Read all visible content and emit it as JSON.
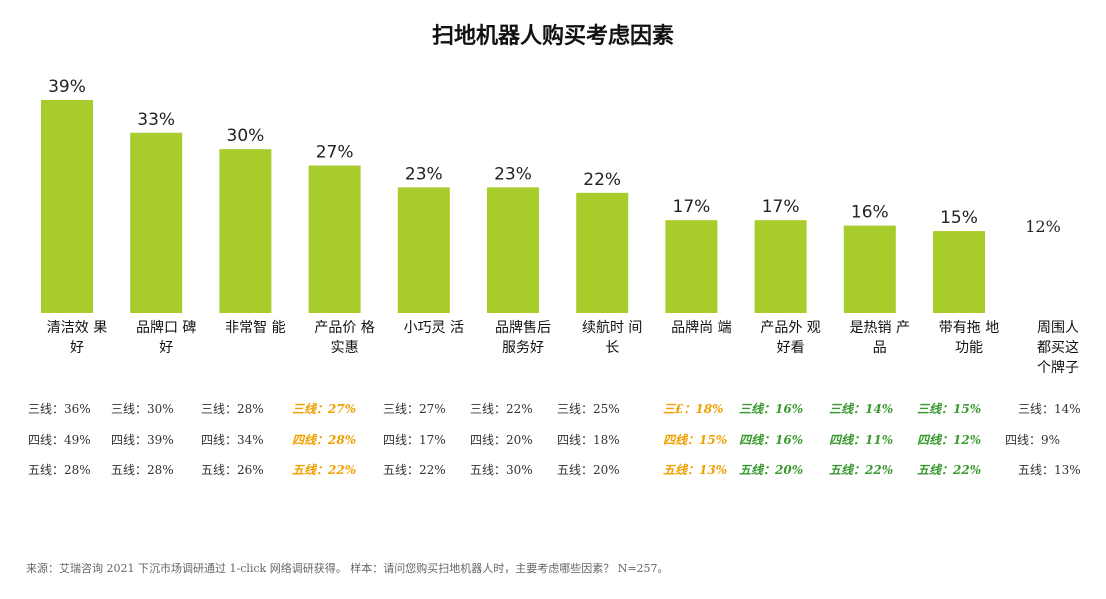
{
  "chart_data": {
    "type": "bar",
    "title": "扫地机器人购买考虑因素",
    "categories": [
      "清洁效 果\n好",
      "品牌口 碑\n好",
      "非常智 能",
      "产品价 格\n实惠",
      "小巧灵 活",
      "品牌售后\n服务好",
      "续航时 间\n长",
      "品牌尚 端",
      "产品外 观\n好看",
      "是热销 产\n品",
      "带有拖 地\n功能",
      "周围人\n都买这\n个牌子"
    ],
    "values": [
      39,
      33,
      30,
      27,
      23,
      23,
      22,
      17,
      17,
      16,
      15,
      12
    ],
    "value_labels": [
      "39%",
      "33%",
      "30%",
      "27%",
      "23%",
      "23%",
      "22%",
      "17%",
      "17%",
      "16%",
      "15%",
      "12%"
    ],
    "ylim": [
      0,
      39
    ],
    "bar_color": "#a8cc2c",
    "tiers": [
      [
        "三线：36%",
        "四线：49%",
        "五线：28%"
      ],
      [
        "三线：30%",
        "四线：39%",
        "五线：28%"
      ],
      [
        "三线：28%",
        "四线：34%",
        "五线：26%"
      ],
      [
        "三线：27%",
        "四线：28%",
        "五线：22%"
      ],
      [
        "三线：27%",
        "四线：17%",
        "五线：22%"
      ],
      [
        "三线：22%",
        "四线：20%",
        "五线：30%"
      ],
      [
        "三线：25%",
        "四线：18%",
        "五线：20%"
      ],
      [
        "三£：18%",
        "四线：15%",
        "五线：13%"
      ],
      [
        "三线：16%",
        "四线：16%",
        "五线：20%"
      ],
      [
        "三线：14%",
        "四线：11%",
        "五线：22%"
      ],
      [
        "三线：15%",
        "四线：12%",
        "五线：22%"
      ],
      [
        "三线：14%",
        "四线：9%",
        "五线：13%"
      ]
    ],
    "tier_styles": [
      "normal",
      "normal",
      "normal",
      "orange",
      "normal",
      "normal",
      "normal",
      "orange",
      "green",
      "green",
      "green",
      "normal"
    ]
  },
  "source_note": "来源：艾瑞咨询 2021 下沉市场调研通过 1-click 网络调研获得。 样本：请问您购买扫地机器人时，主要考虑哪些因素？ N=257。",
  "colors": {
    "orange": "#f0a000",
    "green": "#3a9a30",
    "bar": "#a8cc2c"
  }
}
